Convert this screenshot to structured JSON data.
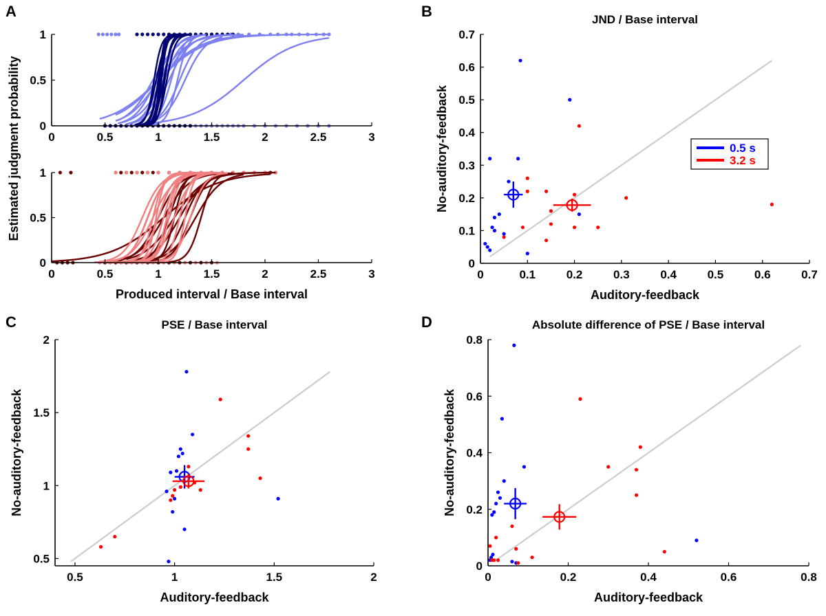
{
  "panel_letters": {
    "a": "A",
    "b": "B",
    "c": "C",
    "d": "D"
  },
  "colors": {
    "blue_mean": "#0000ff",
    "red_mean": "#ff0000",
    "blue_light": "#7b7ff0",
    "blue_dark": "#000070",
    "red_light": "#f08080",
    "red_dark": "#6b0000",
    "identity": "#cccccc"
  },
  "legend": {
    "blue": "0.5 s",
    "red": "3.2 s"
  },
  "chart_data": [
    {
      "id": "A-top",
      "type": "line",
      "title": "",
      "ylabel": "Estimated judgment probability",
      "xlabel": "",
      "xlim": [
        0,
        3
      ],
      "ylim": [
        0,
        1
      ],
      "xticks": [
        0,
        0.5,
        1,
        1.5,
        2,
        2.5,
        3
      ],
      "yticks": [
        0,
        0.5,
        1
      ],
      "series": [
        {
          "name": "0.5 s light",
          "curves": [
            [
              0.45,
              2.6,
              1.0,
              0.22
            ],
            [
              0.6,
              1.8,
              1.0,
              0.14
            ],
            [
              0.65,
              1.7,
              1.05,
              0.12
            ],
            [
              0.62,
              1.3,
              0.98,
              0.1
            ],
            [
              0.7,
              1.6,
              1.1,
              0.1
            ],
            [
              0.75,
              1.55,
              1.2,
              0.09
            ],
            [
              0.7,
              1.4,
              1.02,
              0.08
            ],
            [
              0.8,
              1.6,
              1.25,
              0.1
            ],
            [
              0.6,
              2.0,
              1.0,
              0.2
            ],
            [
              0.72,
              1.35,
              1.05,
              0.09
            ],
            [
              0.78,
              1.4,
              1.12,
              0.06
            ],
            [
              0.85,
              2.6,
              1.8,
              0.25
            ],
            [
              0.62,
              1.2,
              0.95,
              0.12
            ],
            [
              0.9,
              1.45,
              1.18,
              0.05
            ]
          ]
        },
        {
          "name": "0.5 s dark",
          "curves": [
            [
              0.8,
              1.3,
              1.0,
              0.035
            ],
            [
              0.82,
              1.25,
              1.02,
              0.03
            ],
            [
              0.85,
              1.2,
              1.0,
              0.03
            ],
            [
              0.8,
              1.3,
              1.05,
              0.04
            ],
            [
              0.78,
              1.3,
              0.98,
              0.045
            ],
            [
              0.82,
              1.22,
              1.03,
              0.025
            ],
            [
              0.8,
              1.3,
              1.08,
              0.04
            ],
            [
              0.84,
              1.3,
              1.06,
              0.03
            ],
            [
              0.86,
              1.2,
              1.01,
              0.02
            ],
            [
              0.8,
              1.25,
              0.96,
              0.035
            ]
          ]
        }
      ],
      "scatter": [
        {
          "name": "responses light",
          "y": 1,
          "x": [
            0.44,
            0.48,
            0.52,
            0.56,
            0.6,
            0.63,
            1.45,
            1.5,
            1.6,
            1.68,
            1.75,
            1.85,
            1.95,
            2.05,
            2.12,
            2.2,
            2.25,
            2.32,
            2.4,
            2.48,
            2.55,
            2.6
          ]
        },
        {
          "name": "responses light 0",
          "y": 0,
          "x": [
            0.5,
            0.55,
            0.6,
            0.65,
            0.7,
            1.3,
            1.35,
            1.4,
            1.45,
            1.5,
            1.55,
            1.6,
            1.65,
            1.7,
            1.75,
            1.8,
            1.9,
            2.0,
            2.1,
            2.2,
            2.3,
            2.4,
            2.5,
            2.6
          ]
        },
        {
          "name": "responses dark",
          "y": 1,
          "x": [
            0.8,
            0.85,
            0.9,
            0.95,
            1.0,
            1.05,
            1.1,
            1.15,
            1.2,
            1.25,
            1.3,
            1.35,
            1.4,
            1.45,
            1.5,
            1.55,
            1.6,
            1.65,
            1.7
          ]
        },
        {
          "name": "responses dark 0",
          "y": 0,
          "x": [
            0.5,
            0.55,
            0.6,
            0.65,
            0.7,
            0.75,
            0.8,
            0.85,
            0.9,
            0.95,
            1.0,
            1.05,
            1.1,
            1.15,
            1.2,
            1.25,
            1.3
          ]
        }
      ]
    },
    {
      "id": "A-bottom",
      "type": "line",
      "title": "",
      "xlabel": "Produced interval / Base interval",
      "ylabel": "",
      "xlim": [
        0,
        3
      ],
      "ylim": [
        0,
        1
      ],
      "xticks": [
        0,
        0.5,
        1,
        1.5,
        2,
        2.5,
        3
      ],
      "yticks": [
        0,
        0.5,
        1
      ],
      "series": [
        {
          "name": "3.2 s dark",
          "curves": [
            [
              0.0,
              2.05,
              1.05,
              0.25
            ],
            [
              0.6,
              2.1,
              1.2,
              0.12
            ],
            [
              0.62,
              1.6,
              1.0,
              0.1
            ],
            [
              0.7,
              1.7,
              1.25,
              0.09
            ],
            [
              0.65,
              1.8,
              1.35,
              0.12
            ],
            [
              0.75,
              1.55,
              1.1,
              0.07
            ],
            [
              0.7,
              1.9,
              1.15,
              0.14
            ],
            [
              0.6,
              1.5,
              0.9,
              0.08
            ],
            [
              0.8,
              1.7,
              1.3,
              0.08
            ],
            [
              0.85,
              1.45,
              1.15,
              0.05
            ],
            [
              0.65,
              1.65,
              1.05,
              0.12
            ],
            [
              0.9,
              1.6,
              1.4,
              0.06
            ]
          ]
        },
        {
          "name": "3.2 s light",
          "curves": [
            [
              0.4,
              1.6,
              0.95,
              0.1
            ],
            [
              0.5,
              1.5,
              0.9,
              0.08
            ],
            [
              0.55,
              1.55,
              1.0,
              0.07
            ],
            [
              0.45,
              1.4,
              0.85,
              0.09
            ],
            [
              0.6,
              1.5,
              1.05,
              0.06
            ],
            [
              0.7,
              1.45,
              1.1,
              0.05
            ],
            [
              0.65,
              1.6,
              1.15,
              0.08
            ],
            [
              0.5,
              1.3,
              0.95,
              0.05
            ],
            [
              0.75,
              1.5,
              1.2,
              0.05
            ],
            [
              0.55,
              1.4,
              1.0,
              0.07
            ],
            [
              0.8,
              1.55,
              1.25,
              0.04
            ],
            [
              0.6,
              1.35,
              0.98,
              0.04
            ],
            [
              0.7,
              1.65,
              1.3,
              0.07
            ],
            [
              0.62,
              1.45,
              1.08,
              0.05
            ]
          ]
        }
      ],
      "scatter": [
        {
          "name": "responses dark",
          "y": 1,
          "x": [
            0.08,
            0.18,
            0.6,
            0.65,
            0.7,
            0.75,
            0.8,
            0.85,
            0.9,
            0.95,
            1.0,
            1.1,
            1.2,
            1.3,
            1.4,
            1.5,
            1.6,
            1.7,
            1.8,
            1.9,
            2.0,
            2.05,
            2.1
          ]
        },
        {
          "name": "responses dark 0",
          "y": 0,
          "x": [
            0.05,
            0.1,
            0.15,
            0.2,
            0.5,
            0.6,
            0.7,
            0.8,
            0.9,
            1.0,
            1.1,
            1.2,
            1.3,
            1.4,
            1.5
          ]
        },
        {
          "name": "responses light",
          "y": 1,
          "x": [
            0.6,
            0.7,
            0.8,
            0.9,
            1.0,
            1.1,
            1.2,
            1.3,
            1.4,
            1.5,
            1.6,
            1.7,
            1.8,
            1.9,
            2.0,
            2.1
          ]
        },
        {
          "name": "responses light 0",
          "y": 0,
          "x": [
            0.45,
            0.55,
            0.65,
            0.75,
            0.85,
            0.95,
            1.05,
            1.15,
            1.25,
            1.35,
            1.45,
            1.55
          ]
        }
      ]
    },
    {
      "id": "B",
      "type": "scatter",
      "title": "JND / Base interval",
      "xlabel": "Auditory-feedback",
      "ylabel": "No-auditory-feedback",
      "xlim": [
        0,
        0.7
      ],
      "ylim": [
        0,
        0.7
      ],
      "xticks": [
        0,
        0.1,
        0.2,
        0.3,
        0.4,
        0.5,
        0.6,
        0.7
      ],
      "yticks": [
        0,
        0.1,
        0.2,
        0.3,
        0.4,
        0.5,
        0.6,
        0.7
      ],
      "identity": [
        0.02,
        0.62
      ],
      "series": [
        {
          "name": "0.5 s",
          "color": "blue",
          "x": [
            0.01,
            0.015,
            0.02,
            0.025,
            0.03,
            0.03,
            0.04,
            0.05,
            0.06,
            0.08,
            0.085,
            0.1,
            0.19,
            0.21,
            0.02
          ],
          "y": [
            0.06,
            0.05,
            0.32,
            0.11,
            0.1,
            0.14,
            0.15,
            0.09,
            0.25,
            0.32,
            0.62,
            0.03,
            0.5,
            0.15,
            0.04
          ]
        },
        {
          "name": "3.2 s",
          "color": "red",
          "x": [
            0.05,
            0.09,
            0.1,
            0.1,
            0.14,
            0.15,
            0.15,
            0.2,
            0.2,
            0.21,
            0.25,
            0.31,
            0.62,
            0.14
          ],
          "y": [
            0.08,
            0.11,
            0.26,
            0.22,
            0.22,
            0.12,
            0.16,
            0.21,
            0.11,
            0.42,
            0.11,
            0.2,
            0.18,
            0.07
          ]
        }
      ],
      "means": [
        {
          "name": "0.5 s",
          "color": "blue",
          "x": 0.07,
          "y": 0.21,
          "xerr": 0.02,
          "yerr": 0.04
        },
        {
          "name": "3.2 s",
          "color": "red",
          "x": 0.195,
          "y": 0.178,
          "xerr": 0.04,
          "yerr": 0.02
        }
      ],
      "legend_position": "right"
    },
    {
      "id": "C",
      "type": "scatter",
      "title": "PSE / Base interval",
      "xlabel": "Auditory-feedback",
      "ylabel": "No-auditory-feedback",
      "xlim": [
        0.4,
        2
      ],
      "ylim": [
        0.45,
        2
      ],
      "xticks": [
        0.5,
        1,
        1.5,
        2
      ],
      "yticks": [
        0.5,
        1,
        1.5,
        2
      ],
      "identity": [
        0.48,
        1.78
      ],
      "series": [
        {
          "name": "0.5 s",
          "color": "blue",
          "x": [
            0.96,
            0.97,
            0.99,
            1.0,
            1.01,
            1.02,
            1.03,
            1.05,
            1.06,
            1.09,
            1.52,
            1.04,
            0.98
          ],
          "y": [
            0.96,
            0.48,
            0.82,
            0.91,
            1.1,
            1.2,
            1.25,
            0.7,
            1.78,
            1.35,
            0.91,
            1.22,
            1.09
          ]
        },
        {
          "name": "3.2 s",
          "color": "red",
          "x": [
            0.63,
            0.7,
            0.98,
            1.0,
            1.03,
            1.07,
            1.1,
            1.13,
            1.23,
            1.37,
            1.37,
            1.43,
            0.99
          ],
          "y": [
            0.58,
            0.65,
            0.9,
            0.97,
            0.99,
            1.13,
            1.02,
            0.97,
            1.59,
            1.34,
            1.25,
            1.05,
            0.93
          ]
        }
      ],
      "means": [
        {
          "name": "0.5 s",
          "color": "blue",
          "x": 1.05,
          "y": 1.06,
          "xerr": 0.05,
          "yerr": 0.08
        },
        {
          "name": "3.2 s",
          "color": "red",
          "x": 1.07,
          "y": 1.03,
          "xerr": 0.08,
          "yerr": 0.05
        }
      ]
    },
    {
      "id": "D",
      "type": "scatter",
      "title": "Absolute difference of PSE / Base interval",
      "xlabel": "Auditory-feedback",
      "ylabel": "No-auditory-feedback",
      "xlim": [
        0,
        0.8
      ],
      "ylim": [
        0,
        0.8
      ],
      "xticks": [
        0,
        0.2,
        0.4,
        0.6,
        0.8
      ],
      "yticks": [
        0,
        0.2,
        0.4,
        0.6,
        0.8
      ],
      "identity": [
        0.02,
        0.78
      ],
      "series": [
        {
          "name": "0.5 s",
          "color": "blue",
          "x": [
            0.005,
            0.008,
            0.01,
            0.015,
            0.02,
            0.025,
            0.03,
            0.035,
            0.04,
            0.06,
            0.065,
            0.07,
            0.09,
            0.52,
            0.012
          ],
          "y": [
            0.02,
            0.03,
            0.18,
            0.19,
            0.22,
            0.26,
            0.24,
            0.52,
            0.3,
            0.015,
            0.78,
            0.01,
            0.35,
            0.09,
            0.04
          ]
        },
        {
          "name": "3.2 s",
          "color": "red",
          "x": [
            0.005,
            0.01,
            0.02,
            0.025,
            0.06,
            0.07,
            0.075,
            0.11,
            0.23,
            0.3,
            0.37,
            0.37,
            0.38,
            0.44,
            0.015
          ],
          "y": [
            0.07,
            0.02,
            0.1,
            0.02,
            0.14,
            0.06,
            0.01,
            0.03,
            0.59,
            0.35,
            0.25,
            0.34,
            0.42,
            0.05,
            0.02
          ]
        }
      ],
      "means": [
        {
          "name": "0.5 s",
          "color": "blue",
          "x": 0.068,
          "y": 0.22,
          "xerr": 0.028,
          "yerr": 0.055
        },
        {
          "name": "3.2 s",
          "color": "red",
          "x": 0.178,
          "y": 0.173,
          "xerr": 0.042,
          "yerr": 0.045
        }
      ]
    }
  ]
}
